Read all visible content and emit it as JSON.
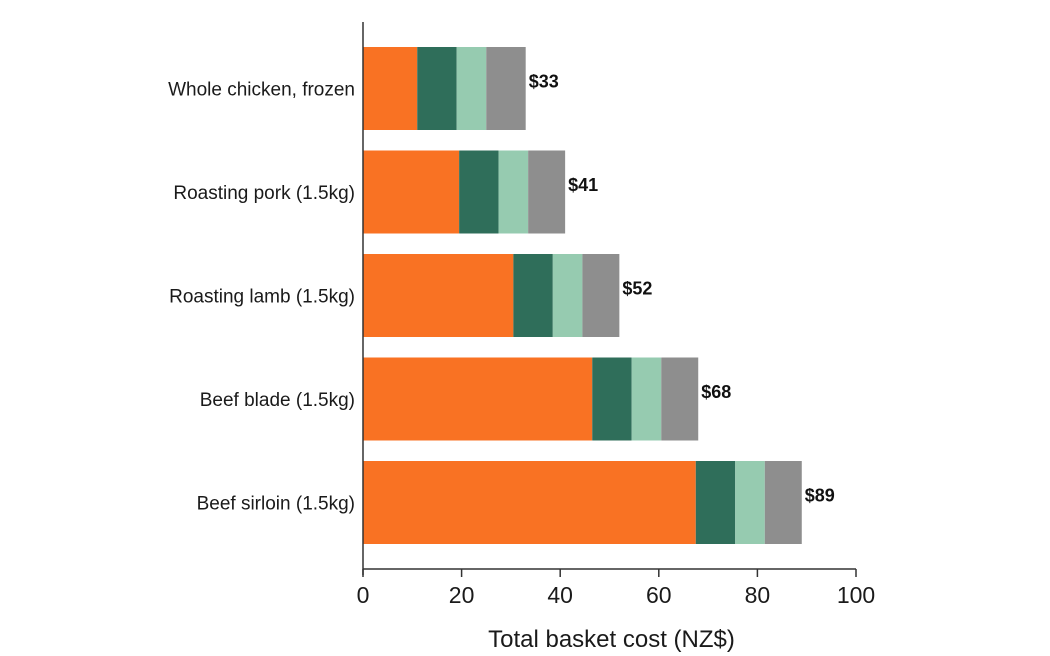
{
  "chart_data": {
    "type": "bar",
    "orientation": "horizontal",
    "stacked": true,
    "categories": [
      "Whole chicken, frozen",
      "Roasting pork (1.5kg)",
      "Roasting lamb (1.5kg)",
      "Beef blade (1.5kg)",
      "Beef sirloin (1.5kg)"
    ],
    "series": [
      {
        "color": "#f97223",
        "values": [
          11,
          19.5,
          30.5,
          46.5,
          67.5
        ]
      },
      {
        "color": "#2f6e5a",
        "values": [
          8,
          8,
          8,
          8,
          8
        ]
      },
      {
        "color": "#96cbb0",
        "values": [
          6,
          6,
          6,
          6,
          6
        ]
      },
      {
        "color": "#8e8e8e",
        "values": [
          8,
          7.5,
          7.5,
          7.5,
          7.5
        ]
      }
    ],
    "totals": [
      33,
      41,
      52,
      68,
      89
    ],
    "total_labels": [
      "$33",
      "$41",
      "$52",
      "$68",
      "$89"
    ],
    "xlabel": "Total basket cost (NZ$)",
    "xlim": [
      0,
      100
    ],
    "xticks": [
      0,
      20,
      40,
      60,
      80,
      100
    ],
    "grid": false,
    "legend": "none"
  }
}
